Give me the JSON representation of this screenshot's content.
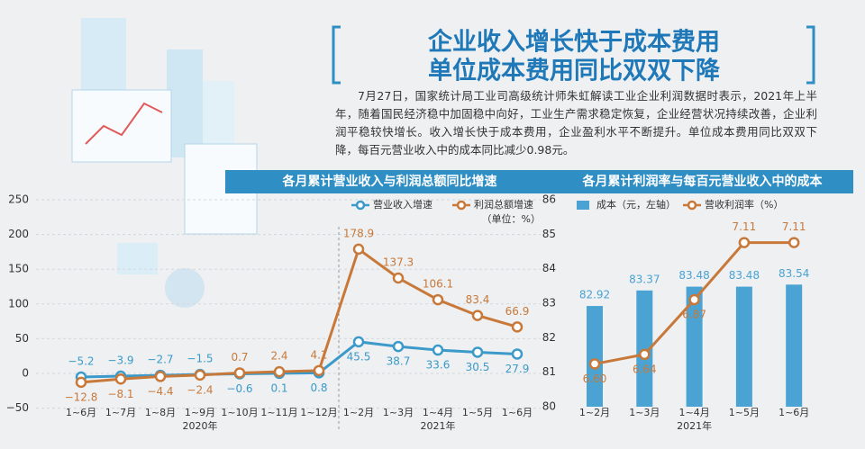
{
  "header": {
    "title": [
      "企业收入增长快于成本费用",
      "单位成本费用同比双双下降"
    ],
    "body": "7月27日，国家统计局工业司高级统计师朱虹解读工业企业利润数据时表示，2021年上半年，随着国民经济稳中加固稳中向好，工业生产需求稳定恢复，企业经营状况持续改善，企业利润平稳较快增长。收入增长快于成本费用，企业盈利水平不断提升。单位成本费用同比双双下降，每百元营业收入中的成本同比减少0.98元。"
  },
  "chart_data": [
    {
      "type": "line",
      "title": "各月累计营业收入与利润总额同比增速",
      "unit": "（单位：%）",
      "categories": [
        "1~6月",
        "1~7月",
        "1~8月",
        "1~9月",
        "1~10月",
        "1~11月",
        "1~12月",
        "1~2月",
        "1~3月",
        "1~4月",
        "1~5月",
        "1~6月"
      ],
      "x_groups": [
        "2020年",
        "2021年"
      ],
      "series": [
        {
          "name": "营业收入增速",
          "color": "#3b9ac9",
          "values": [
            -5.2,
            -3.9,
            -2.7,
            -1.5,
            -0.6,
            0.1,
            0.8,
            45.5,
            38.7,
            33.6,
            30.5,
            27.9
          ],
          "value_labels": [
            "−5.2",
            "−3.9",
            "−2.7",
            "−1.5",
            "−0.6",
            "0.1",
            "0.8",
            "45.5",
            "38.7",
            "33.6",
            "30.5",
            "27.9"
          ]
        },
        {
          "name": "利润总额增速",
          "color": "#c8793a",
          "values": [
            -12.8,
            -8.1,
            -4.4,
            -2.4,
            0.7,
            2.4,
            4.1,
            178.9,
            137.3,
            106.1,
            83.4,
            66.9
          ],
          "value_labels": [
            "−12.8",
            "−8.1",
            "−4.4",
            "−2.4",
            "0.7",
            "2.4",
            "4.1",
            "178.9",
            "137.3",
            "106.1",
            "83.4",
            "66.9"
          ]
        }
      ],
      "ylim": [
        -50,
        250
      ],
      "yticks": [
        {
          "value": -50,
          "label": "−50"
        },
        0,
        50,
        100,
        150,
        200,
        250
      ],
      "grid": true
    },
    {
      "type": "combo",
      "title": "各月累计利润率与每百元营业收入中的成本",
      "categories": [
        "1~2月",
        "1~3月",
        "1~4月",
        "1~5月",
        "1~6月"
      ],
      "x_groups": [
        "2021年"
      ],
      "series": [
        {
          "name": "成本（元，左轴）",
          "type": "bar",
          "color": "#4aa3d3",
          "values": [
            82.92,
            83.37,
            83.48,
            83.48,
            83.54
          ]
        },
        {
          "name": "营收利润率（%）",
          "type": "line",
          "axis": "y2",
          "color": "#c8793a",
          "values": [
            6.6,
            6.64,
            6.87,
            7.11,
            7.11
          ],
          "value_labels": [
            "6.60",
            "6.64",
            "6.87",
            "7.11",
            "7.11"
          ]
        }
      ],
      "ylim": [
        80,
        86
      ],
      "yticks": [
        80,
        81,
        82,
        83,
        84,
        85,
        86
      ],
      "y2lim": [
        6.42,
        7.29
      ],
      "grid": false
    }
  ]
}
